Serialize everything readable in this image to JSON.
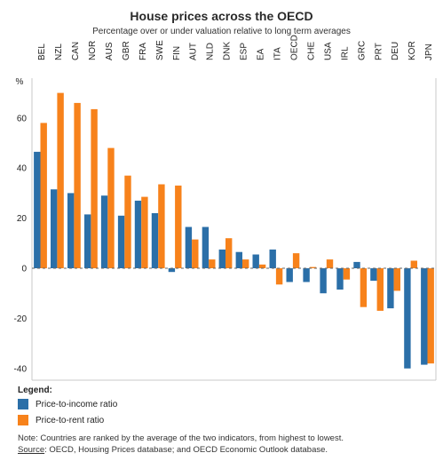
{
  "chart_data": {
    "type": "bar",
    "title": "House prices across the OECD",
    "subtitle": "Percentage over or under valuation relative to long term averages",
    "ylabel": "%",
    "ylim": [
      -45,
      80
    ],
    "yticks": [
      -40,
      -20,
      0,
      20,
      40,
      60
    ],
    "categories": [
      "BEL",
      "NZL",
      "CAN",
      "NOR",
      "AUS",
      "GBR",
      "FRA",
      "SWE",
      "FIN",
      "AUT",
      "NLD",
      "DNK",
      "ESP",
      "EA",
      "ITA",
      "OECD",
      "CHE",
      "USA",
      "IRL",
      "GRC",
      "PRT",
      "DEU",
      "KOR",
      "JPN"
    ],
    "series": [
      {
        "name": "Price-to-income ratio",
        "color": "#2b6fa8",
        "values": [
          46.5,
          31.5,
          30,
          21.5,
          29,
          21,
          27,
          22,
          -1.5,
          16.5,
          16.5,
          7.5,
          6.5,
          5.5,
          7.5,
          -5.5,
          -5.5,
          -10,
          -8.5,
          2.5,
          -5,
          -16,
          -40,
          -38.5
        ]
      },
      {
        "name": "Price-to-rent ratio",
        "color": "#f7821b",
        "values": [
          58,
          70,
          66,
          63.5,
          48,
          37,
          28.5,
          33.5,
          33,
          11.5,
          3.5,
          12,
          3.5,
          1.5,
          -6.5,
          6,
          0.5,
          3.5,
          -4.5,
          -15.5,
          -17,
          -9,
          3,
          -38
        ]
      }
    ],
    "legend_title": "Legend:",
    "grid": false,
    "legend_position": "bottom-left"
  },
  "note": {
    "text": "Note: Countries are ranked by the average of the two indicators, from highest to lowest.",
    "source_label": "Source",
    "source_text": ": OECD, Housing Prices database; and OECD Economic Outlook database."
  }
}
